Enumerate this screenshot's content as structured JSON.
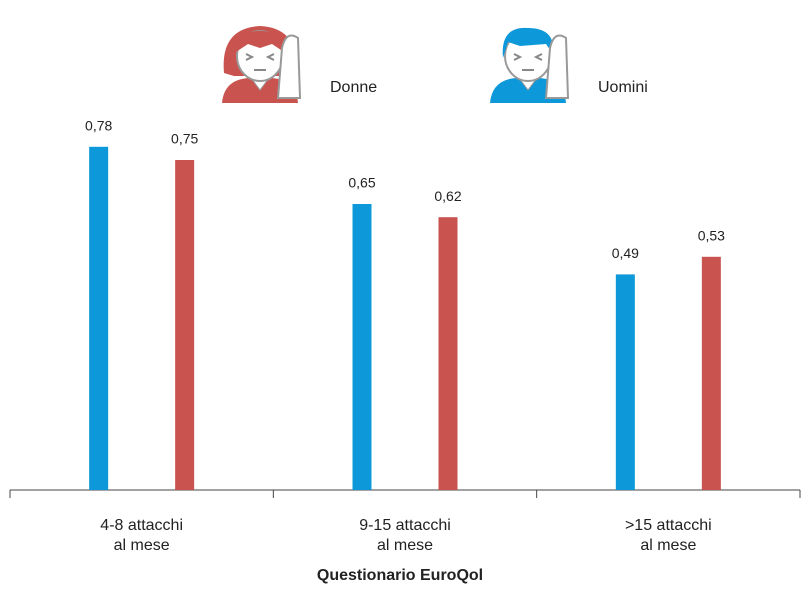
{
  "chart_data": {
    "type": "bar",
    "title": "Questionario EuroQol",
    "categories": [
      "4-8 attacchi\nal mese",
      "9-15 attacchi\nal mese",
      ">15 attacchi\nal mese"
    ],
    "series": [
      {
        "name": "Uomini",
        "color": "#0d98d9",
        "values": [
          0.78,
          0.65,
          0.49
        ],
        "value_labels": [
          "0,78",
          "0,65",
          "0,49"
        ]
      },
      {
        "name": "Donne",
        "color": "#c9534f",
        "values": [
          0.75,
          0.62,
          0.53
        ],
        "value_labels": [
          "0,75",
          "0,62",
          "0,53"
        ]
      }
    ],
    "ylim": [
      0,
      0.9
    ]
  }
}
